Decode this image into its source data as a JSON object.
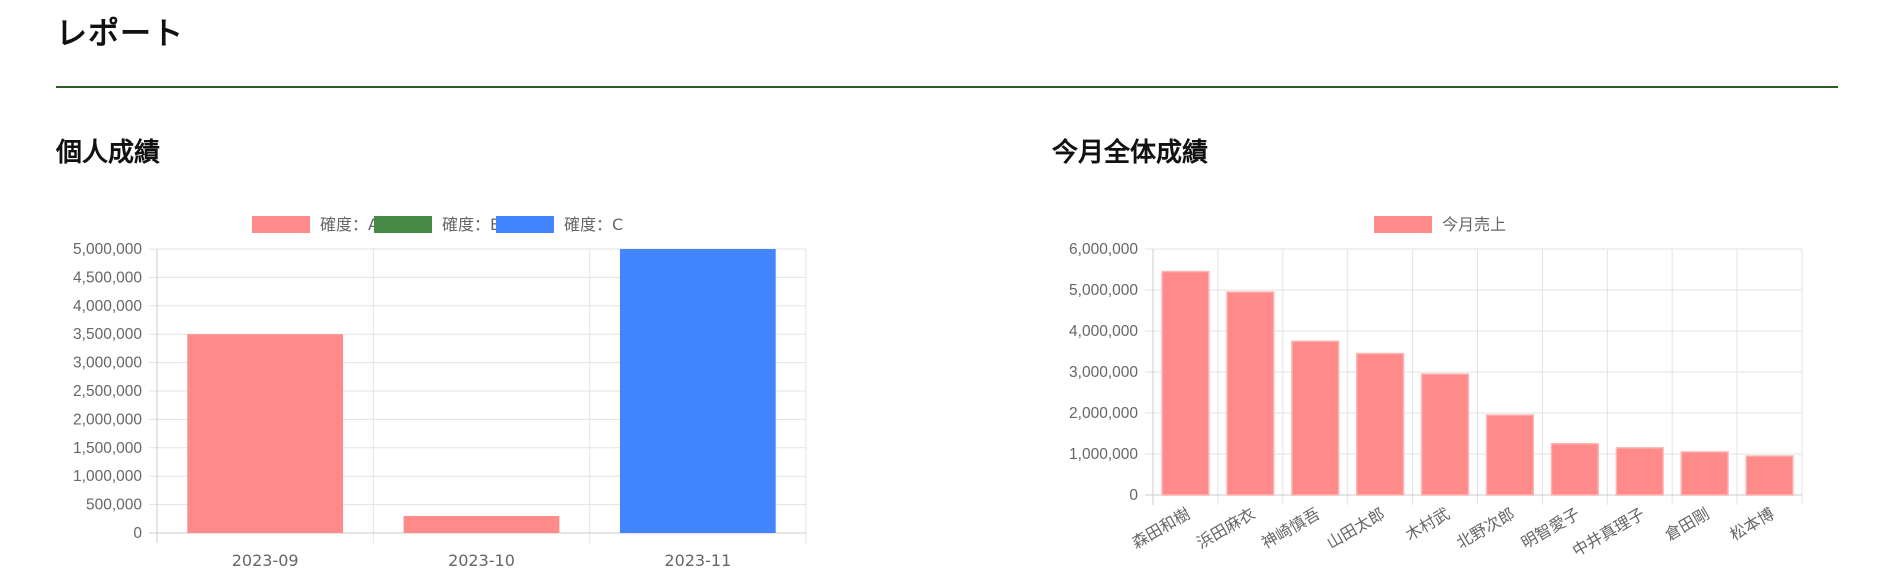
{
  "page": {
    "title": "レポート"
  },
  "colors": {
    "rule": "#2e5e25",
    "grid": "#e3e3e3",
    "text": "#666666",
    "series_a": "#ff8a8a",
    "series_b": "#468a46",
    "series_c": "#4285ff"
  },
  "sections": {
    "personal": {
      "title": "個人成績"
    },
    "overall": {
      "title": "今月全体成績"
    }
  },
  "chart_data": [
    {
      "type": "bar",
      "title": "",
      "categories": [
        "2023-09",
        "2023-10",
        "2023-11"
      ],
      "series": [
        {
          "name": "確度：A",
          "color": "#ff8a8a",
          "values": [
            3500000,
            300000,
            0
          ]
        },
        {
          "name": "確度：B",
          "color": "#468a46",
          "values": [
            0,
            0,
            0
          ]
        },
        {
          "name": "確度：C",
          "color": "#4285ff",
          "values": [
            0,
            0,
            5000000
          ]
        }
      ],
      "stacked": true,
      "ylim": [
        0,
        5000000
      ],
      "yticks": [
        0,
        500000,
        1000000,
        1500000,
        2000000,
        2500000,
        3000000,
        3500000,
        4000000,
        4500000,
        5000000
      ],
      "ytick_labels": [
        "0",
        "500,000",
        "1,000,000",
        "1,500,000",
        "2,000,000",
        "2,500,000",
        "3,000,000",
        "3,500,000",
        "4,000,000",
        "4,500,000",
        "5,000,000"
      ],
      "grid": true,
      "legend": "top-center"
    },
    {
      "type": "bar",
      "title": "",
      "categories": [
        "森田和樹",
        "浜田麻衣",
        "神崎慎吾",
        "山田太郎",
        "木村武",
        "北野次郎",
        "明智愛子",
        "中井真理子",
        "倉田剛",
        "松本博"
      ],
      "series": [
        {
          "name": "今月売上",
          "color": "#ff8a8a",
          "values": [
            5450000,
            4950000,
            3750000,
            3450000,
            2950000,
            1950000,
            1250000,
            1150000,
            1050000,
            950000
          ]
        }
      ],
      "ylim": [
        0,
        6000000
      ],
      "yticks": [
        0,
        1000000,
        2000000,
        3000000,
        4000000,
        5000000,
        6000000
      ],
      "ytick_labels": [
        "0",
        "1,000,000",
        "2,000,000",
        "3,000,000",
        "4,000,000",
        "5,000,000",
        "6,000,000"
      ],
      "grid": true,
      "legend": "top-center"
    }
  ]
}
